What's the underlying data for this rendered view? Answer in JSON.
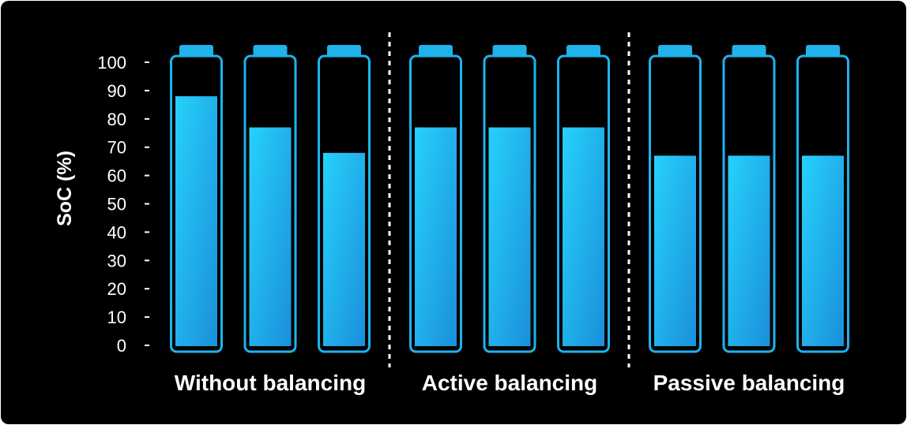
{
  "chart_data": {
    "type": "bar",
    "ylabel": "SoC (%)",
    "ylim": [
      0,
      100
    ],
    "yticks": [
      0,
      10,
      20,
      30,
      40,
      50,
      60,
      70,
      80,
      90,
      100
    ],
    "groups": [
      {
        "label": "Without balancing",
        "values": [
          88,
          77,
          68
        ]
      },
      {
        "label": "Active balancing",
        "values": [
          77,
          77,
          77
        ]
      },
      {
        "label": "Passive balancing",
        "values": [
          67,
          67,
          67
        ]
      }
    ],
    "colors": {
      "background": "#000000",
      "battery_outline": "#1fb3ec",
      "fill_light": "#27d1fb",
      "fill_dark": "#1a8fdb",
      "divider": "#ffffff"
    }
  }
}
